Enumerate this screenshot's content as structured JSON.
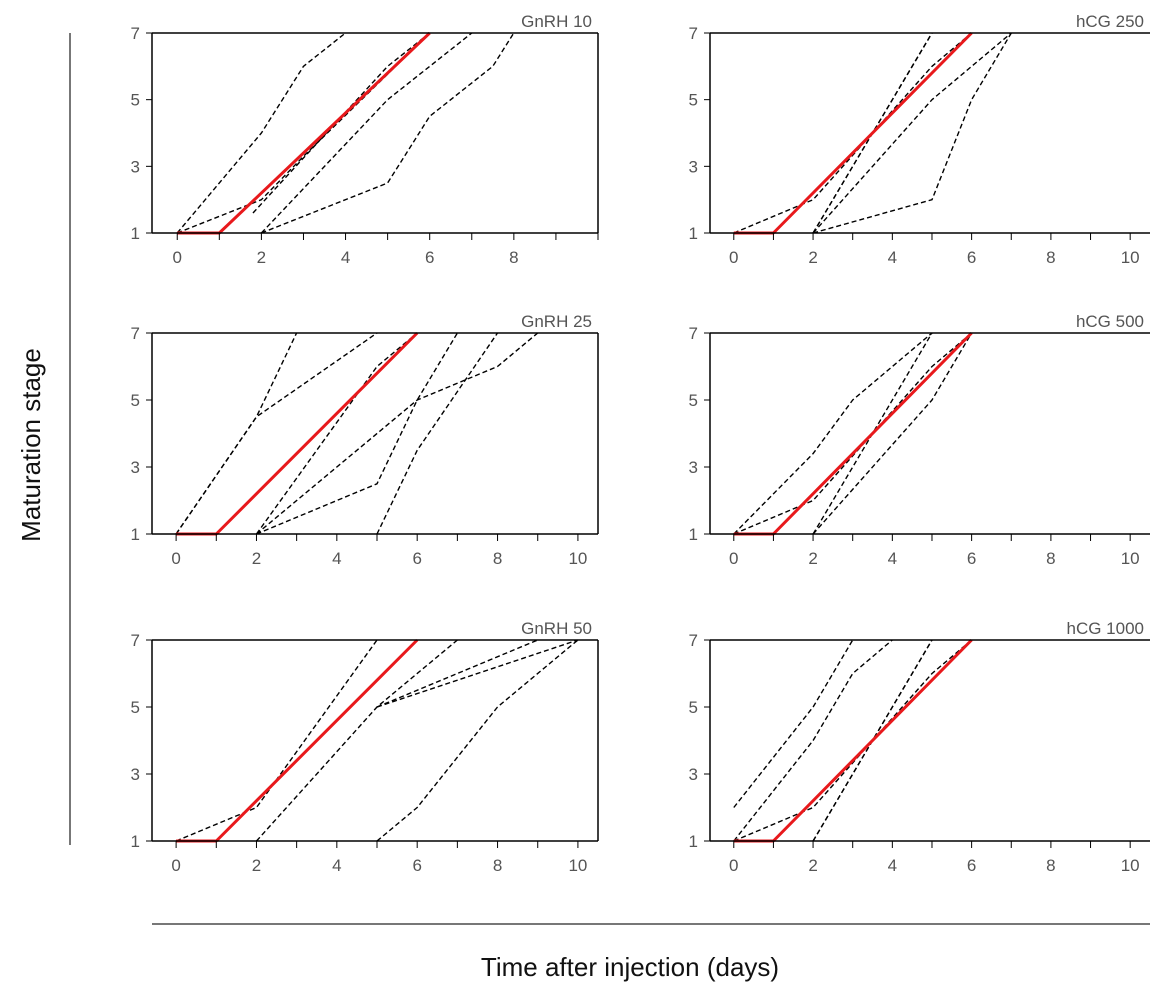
{
  "ylabel": "Maturation stage",
  "xlabel": "Time after injection (days)",
  "colors": {
    "mean": "#e8191c",
    "individual": "#000000",
    "axis": "#000000",
    "tick_text": "#555555",
    "divider": "#777777"
  },
  "chart_data": [
    {
      "type": "line",
      "title": "GnRH 10",
      "xlim": [
        -0.6,
        10
      ],
      "ylim": [
        1,
        7
      ],
      "x_ticks": [
        0,
        2,
        4,
        6,
        8
      ],
      "y_ticks": [
        1,
        3,
        5,
        7
      ],
      "series": [
        {
          "style": "mean",
          "points": [
            [
              0,
              1
            ],
            [
              1,
              1
            ],
            [
              6,
              7
            ]
          ]
        },
        {
          "style": "individual",
          "points": [
            [
              0,
              1
            ],
            [
              2,
              4
            ],
            [
              3,
              6
            ],
            [
              4,
              7
            ]
          ]
        },
        {
          "style": "individual",
          "points": [
            [
              0,
              1
            ],
            [
              2,
              2
            ],
            [
              3,
              3.3
            ],
            [
              6,
              7
            ]
          ]
        },
        {
          "style": "individual",
          "points": [
            [
              1.8,
              1.6
            ],
            [
              5,
              6
            ],
            [
              6,
              7
            ]
          ]
        },
        {
          "style": "individual",
          "points": [
            [
              2,
              1
            ],
            [
              5,
              5
            ],
            [
              7,
              7
            ]
          ]
        },
        {
          "style": "individual",
          "points": [
            [
              2,
              1
            ],
            [
              5,
              2.5
            ],
            [
              6,
              4.5
            ],
            [
              7.5,
              6
            ],
            [
              8,
              7
            ]
          ]
        }
      ]
    },
    {
      "type": "line",
      "title": "hCG 250",
      "xlim": [
        -0.6,
        10.5
      ],
      "ylim": [
        1,
        7
      ],
      "x_ticks": [
        0,
        2,
        4,
        6,
        8,
        10
      ],
      "y_ticks": [
        1,
        3,
        5,
        7
      ],
      "series": [
        {
          "style": "mean",
          "points": [
            [
              0,
              1
            ],
            [
              1,
              1
            ],
            [
              6,
              7
            ]
          ]
        },
        {
          "style": "individual",
          "points": [
            [
              0,
              1
            ],
            [
              2,
              2
            ],
            [
              5,
              6
            ],
            [
              6,
              7
            ]
          ]
        },
        {
          "style": "individual",
          "points": [
            [
              2,
              1
            ],
            [
              5,
              7
            ]
          ]
        },
        {
          "style": "individual",
          "points": [
            [
              2,
              1
            ],
            [
              5,
              7
            ]
          ]
        },
        {
          "style": "individual",
          "points": [
            [
              2,
              1
            ],
            [
              5,
              5
            ],
            [
              7,
              7
            ]
          ]
        },
        {
          "style": "individual",
          "points": [
            [
              2,
              1
            ],
            [
              5,
              2
            ],
            [
              6,
              5
            ],
            [
              7,
              7
            ]
          ]
        }
      ]
    },
    {
      "type": "line",
      "title": "GnRH 25",
      "xlim": [
        -0.6,
        10.5
      ],
      "ylim": [
        1,
        7
      ],
      "x_ticks": [
        0,
        2,
        4,
        6,
        8,
        10
      ],
      "y_ticks": [
        1,
        3,
        5,
        7
      ],
      "series": [
        {
          "style": "mean",
          "points": [
            [
              0,
              1
            ],
            [
              1,
              1
            ],
            [
              6,
              7
            ]
          ]
        },
        {
          "style": "individual",
          "points": [
            [
              0,
              1
            ],
            [
              2,
              4.5
            ],
            [
              3,
              7
            ]
          ]
        },
        {
          "style": "individual",
          "points": [
            [
              0,
              1
            ],
            [
              2,
              4.5
            ],
            [
              5,
              7
            ]
          ]
        },
        {
          "style": "individual",
          "points": [
            [
              2,
              1
            ],
            [
              5,
              6
            ],
            [
              6,
              7
            ]
          ]
        },
        {
          "style": "individual",
          "points": [
            [
              2,
              1
            ],
            [
              6,
              5
            ],
            [
              8,
              6
            ],
            [
              9,
              7
            ]
          ]
        },
        {
          "style": "individual",
          "points": [
            [
              2,
              1
            ],
            [
              5,
              2.5
            ],
            [
              6,
              5
            ],
            [
              7,
              7
            ]
          ]
        },
        {
          "style": "individual",
          "points": [
            [
              5,
              1
            ],
            [
              6,
              3.5
            ],
            [
              8,
              7
            ]
          ]
        }
      ]
    },
    {
      "type": "line",
      "title": "hCG 500",
      "xlim": [
        -0.6,
        10.5
      ],
      "ylim": [
        1,
        7
      ],
      "x_ticks": [
        0,
        2,
        4,
        6,
        8,
        10
      ],
      "y_ticks": [
        1,
        3,
        5,
        7
      ],
      "series": [
        {
          "style": "mean",
          "points": [
            [
              0,
              1
            ],
            [
              1,
              1
            ],
            [
              6,
              7
            ]
          ]
        },
        {
          "style": "individual",
          "points": [
            [
              0,
              1
            ],
            [
              2,
              3.4
            ],
            [
              3,
              5
            ],
            [
              5,
              7
            ]
          ]
        },
        {
          "style": "individual",
          "points": [
            [
              0,
              1
            ],
            [
              2,
              2
            ],
            [
              5,
              6
            ],
            [
              6,
              7
            ]
          ]
        },
        {
          "style": "individual",
          "points": [
            [
              2,
              1
            ],
            [
              5,
              7
            ]
          ]
        },
        {
          "style": "individual",
          "points": [
            [
              2,
              1
            ],
            [
              5,
              5
            ],
            [
              6,
              7
            ]
          ]
        }
      ]
    },
    {
      "type": "line",
      "title": "GnRH 50",
      "xlim": [
        -0.6,
        10.5
      ],
      "ylim": [
        1,
        7
      ],
      "x_ticks": [
        0,
        2,
        4,
        6,
        8,
        10
      ],
      "y_ticks": [
        1,
        3,
        5,
        7
      ],
      "series": [
        {
          "style": "mean",
          "points": [
            [
              0,
              1
            ],
            [
              1,
              1
            ],
            [
              6,
              7
            ]
          ]
        },
        {
          "style": "individual",
          "points": [
            [
              0,
              1
            ],
            [
              2,
              2
            ],
            [
              5,
              7
            ]
          ]
        },
        {
          "style": "individual",
          "points": [
            [
              2,
              1
            ],
            [
              5,
              5
            ],
            [
              7,
              7
            ]
          ]
        },
        {
          "style": "individual",
          "points": [
            [
              5,
              5
            ],
            [
              9,
              7
            ]
          ]
        },
        {
          "style": "individual",
          "points": [
            [
              5,
              5
            ],
            [
              10,
              7
            ]
          ]
        },
        {
          "style": "individual",
          "points": [
            [
              5,
              1
            ],
            [
              6,
              2
            ],
            [
              8,
              5
            ],
            [
              10,
              7
            ]
          ]
        }
      ]
    },
    {
      "type": "line",
      "title": "hCG 1000",
      "xlim": [
        -0.6,
        10.5
      ],
      "ylim": [
        1,
        7
      ],
      "x_ticks": [
        0,
        2,
        4,
        6,
        8,
        10
      ],
      "y_ticks": [
        1,
        3,
        5,
        7
      ],
      "series": [
        {
          "style": "mean",
          "points": [
            [
              0,
              1
            ],
            [
              1,
              1
            ],
            [
              6,
              7
            ]
          ]
        },
        {
          "style": "individual",
          "points": [
            [
              0,
              2
            ],
            [
              2,
              5
            ],
            [
              3,
              7
            ]
          ]
        },
        {
          "style": "individual",
          "points": [
            [
              0,
              1
            ],
            [
              2,
              4
            ],
            [
              3,
              6
            ],
            [
              4,
              7
            ]
          ]
        },
        {
          "style": "individual",
          "points": [
            [
              0,
              1
            ],
            [
              2,
              2
            ],
            [
              5,
              6
            ],
            [
              6,
              7
            ]
          ]
        },
        {
          "style": "individual",
          "points": [
            [
              2,
              1
            ],
            [
              5,
              7
            ]
          ]
        },
        {
          "style": "individual",
          "points": [
            [
              2,
              1
            ],
            [
              5,
              7
            ]
          ]
        }
      ]
    }
  ]
}
